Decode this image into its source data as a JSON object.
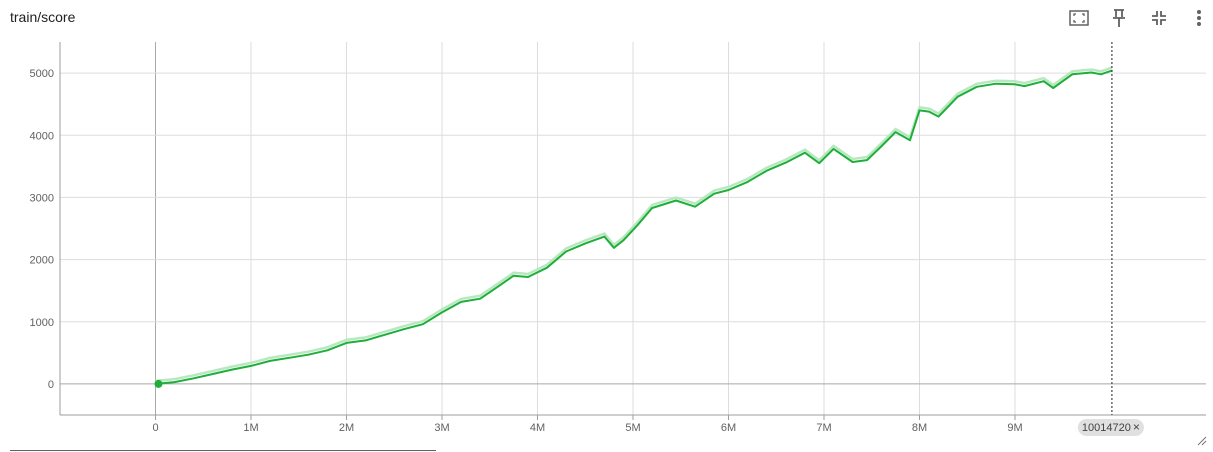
{
  "card": {
    "title": "train/score"
  },
  "toolbar": {
    "buttons": [
      {
        "icon": "fit-domain-icon"
      },
      {
        "icon": "pin-icon"
      },
      {
        "icon": "collapse-icon"
      },
      {
        "icon": "more-vert-icon"
      }
    ]
  },
  "colors": {
    "smoothed": "#1fae3a",
    "raw": "#b7e8bf",
    "grid": "#dddddd",
    "axis": "#9e9e9e",
    "cursor": "#444444",
    "chip_bg": "#e0e0e0"
  },
  "cursor_chip": {
    "label": "10014720",
    "close": "×"
  },
  "chart_data": {
    "type": "line",
    "title": "train/score",
    "xlabel": "",
    "ylabel": "",
    "xlim": [
      -1000000,
      11000000
    ],
    "ylim": [
      -500,
      5500
    ],
    "xticks": [
      0,
      1000000,
      2000000,
      3000000,
      4000000,
      5000000,
      6000000,
      7000000,
      8000000,
      9000000
    ],
    "xtick_labels": [
      "0",
      "1M",
      "2M",
      "3M",
      "4M",
      "5M",
      "6M",
      "7M",
      "8M",
      "9M"
    ],
    "yticks": [
      0,
      1000,
      2000,
      3000,
      4000,
      5000
    ],
    "ytick_labels": [
      "0",
      "1000",
      "2000",
      "3000",
      "4000",
      "5000"
    ],
    "grid": true,
    "cursor_x": 10014720,
    "series": [
      {
        "x": [
          0,
          200000,
          400000,
          600000,
          800000,
          1000000,
          1200000,
          1400000,
          1600000,
          1800000,
          2000000,
          2200000,
          2400000,
          2600000,
          2800000,
          3000000,
          3200000,
          3400000,
          3600000,
          3750000,
          3900000,
          4100000,
          4300000,
          4500000,
          4700000,
          4800000,
          4900000,
          5050000,
          5200000,
          5450000,
          5650000,
          5850000,
          6000000,
          6200000,
          6400000,
          6600000,
          6800000,
          6950000,
          7100000,
          7300000,
          7450000,
          7600000,
          7750000,
          7900000,
          8000000,
          8100000,
          8200000,
          8400000,
          8600000,
          8800000,
          9000000,
          9100000,
          9300000,
          9400000,
          9600000,
          9800000,
          9900000,
          10014720
        ],
        "values": [
          0,
          30,
          90,
          160,
          230,
          290,
          370,
          420,
          470,
          540,
          660,
          700,
          790,
          880,
          960,
          1150,
          1320,
          1370,
          1580,
          1740,
          1720,
          1870,
          2130,
          2260,
          2370,
          2190,
          2310,
          2560,
          2830,
          2950,
          2850,
          3060,
          3120,
          3250,
          3430,
          3560,
          3720,
          3550,
          3780,
          3570,
          3600,
          3820,
          4050,
          3920,
          4400,
          4380,
          4300,
          4620,
          4780,
          4830,
          4820,
          4790,
          4870,
          4760,
          4980,
          5010,
          4980,
          5040
        ]
      }
    ]
  }
}
